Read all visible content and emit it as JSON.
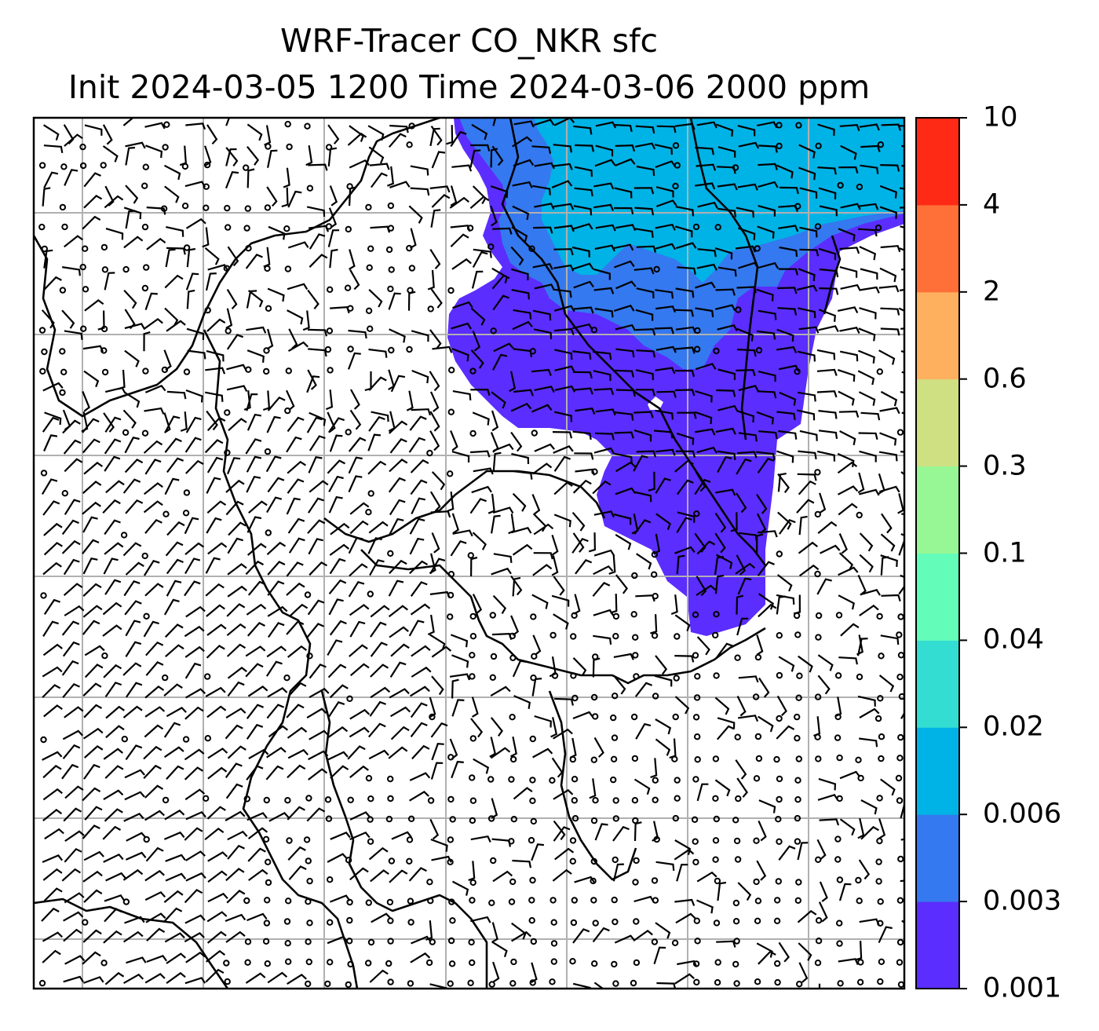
{
  "title": {
    "line1": "WRF-Tracer CO_NKR sfc",
    "line2": "Init 2024-03-05 1200 Time 2024-03-06 2000 ppm"
  },
  "colorbar": {
    "levels": [
      "0.001",
      "0.003",
      "0.006",
      "0.02",
      "0.04",
      "0.1",
      "0.3",
      "0.6",
      "2",
      "4",
      "10"
    ],
    "colors": [
      "#5b2dfe",
      "#3479ef",
      "#00b3e6",
      "#33ddd2",
      "#64fcb9",
      "#97f794",
      "#cfe083",
      "#feb05f",
      "#fe7038",
      "#fe2a16"
    ]
  },
  "map": {
    "field": "CO_NKR tracer concentration (surface)",
    "plume_region": "north-east quadrant",
    "vectors": "wind barbs",
    "gridlines": true,
    "colors": {
      "grid": "#b0b0b0",
      "coast": "#000000",
      "barb": "#000000"
    }
  }
}
